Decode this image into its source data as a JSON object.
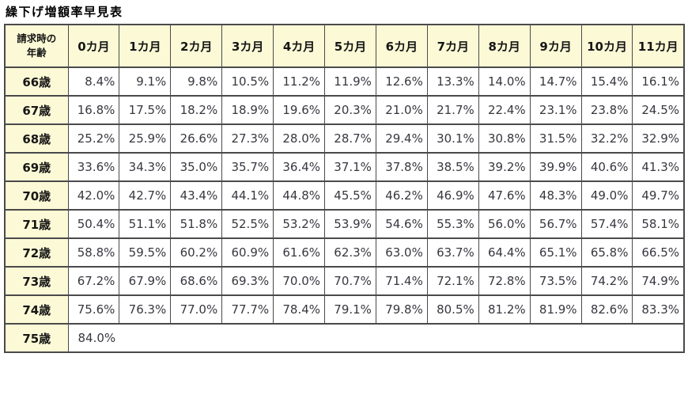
{
  "title": "繰下げ増額率早見表",
  "colors": {
    "header_bg": "#fcfad6",
    "border": "#4a4a4c",
    "data_text": "#37373f",
    "header_text": "#161616",
    "page_bg": "#ffffff"
  },
  "table": {
    "corner_header": "請求時の\n年齢",
    "month_headers": [
      "0カ月",
      "1カ月",
      "2カ月",
      "3カ月",
      "4カ月",
      "5カ月",
      "6カ月",
      "7カ月",
      "8カ月",
      "9カ月",
      "10カ月",
      "11カ月"
    ],
    "rows": [
      {
        "age": "66歳",
        "values": [
          "8.4%",
          "9.1%",
          "9.8%",
          "10.5%",
          "11.2%",
          "11.9%",
          "12.6%",
          "13.3%",
          "14.0%",
          "14.7%",
          "15.4%",
          "16.1%"
        ]
      },
      {
        "age": "67歳",
        "values": [
          "16.8%",
          "17.5%",
          "18.2%",
          "18.9%",
          "19.6%",
          "20.3%",
          "21.0%",
          "21.7%",
          "22.4%",
          "23.1%",
          "23.8%",
          "24.5%"
        ]
      },
      {
        "age": "68歳",
        "values": [
          "25.2%",
          "25.9%",
          "26.6%",
          "27.3%",
          "28.0%",
          "28.7%",
          "29.4%",
          "30.1%",
          "30.8%",
          "31.5%",
          "32.2%",
          "32.9%"
        ]
      },
      {
        "age": "69歳",
        "values": [
          "33.6%",
          "34.3%",
          "35.0%",
          "35.7%",
          "36.4%",
          "37.1%",
          "37.8%",
          "38.5%",
          "39.2%",
          "39.9%",
          "40.6%",
          "41.3%"
        ]
      },
      {
        "age": "70歳",
        "values": [
          "42.0%",
          "42.7%",
          "43.4%",
          "44.1%",
          "44.8%",
          "45.5%",
          "46.2%",
          "46.9%",
          "47.6%",
          "48.3%",
          "49.0%",
          "49.7%"
        ]
      },
      {
        "age": "71歳",
        "values": [
          "50.4%",
          "51.1%",
          "51.8%",
          "52.5%",
          "53.2%",
          "53.9%",
          "54.6%",
          "55.3%",
          "56.0%",
          "56.7%",
          "57.4%",
          "58.1%"
        ]
      },
      {
        "age": "72歳",
        "values": [
          "58.8%",
          "59.5%",
          "60.2%",
          "60.9%",
          "61.6%",
          "62.3%",
          "63.0%",
          "63.7%",
          "64.4%",
          "65.1%",
          "65.8%",
          "66.5%"
        ]
      },
      {
        "age": "73歳",
        "values": [
          "67.2%",
          "67.9%",
          "68.6%",
          "69.3%",
          "70.0%",
          "70.7%",
          "71.4%",
          "72.1%",
          "72.8%",
          "73.5%",
          "74.2%",
          "74.9%"
        ]
      },
      {
        "age": "74歳",
        "values": [
          "75.6%",
          "76.3%",
          "77.0%",
          "77.7%",
          "78.4%",
          "79.1%",
          "79.8%",
          "80.5%",
          "81.2%",
          "81.9%",
          "82.6%",
          "83.3%"
        ]
      },
      {
        "age": "75歳",
        "values": [
          "84.0%"
        ]
      }
    ]
  }
}
